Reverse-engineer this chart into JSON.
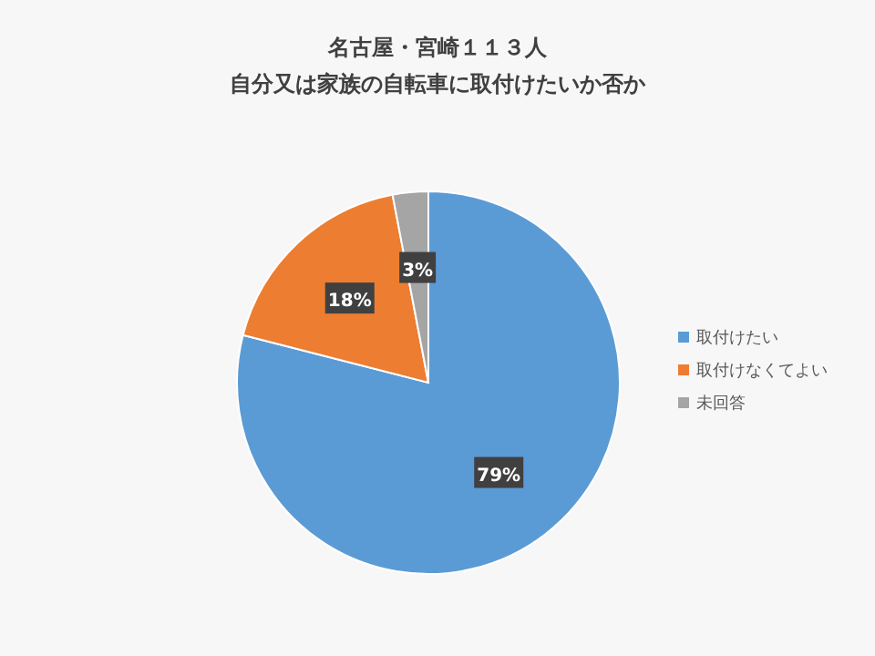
{
  "chart_data": {
    "type": "pie",
    "title": "名古屋・宮崎１１３人",
    "subtitle": "自分又は家族の自転車に取付けたいか否か",
    "categories": [
      "取付けたい",
      "取付けなくてよい",
      "未回答"
    ],
    "values": [
      79,
      18,
      3
    ],
    "colors": [
      "#5b9bd5",
      "#ed7d31",
      "#a5a5a5"
    ],
    "value_labels": [
      "79%",
      "18%",
      "3%"
    ],
    "legend": "right"
  }
}
